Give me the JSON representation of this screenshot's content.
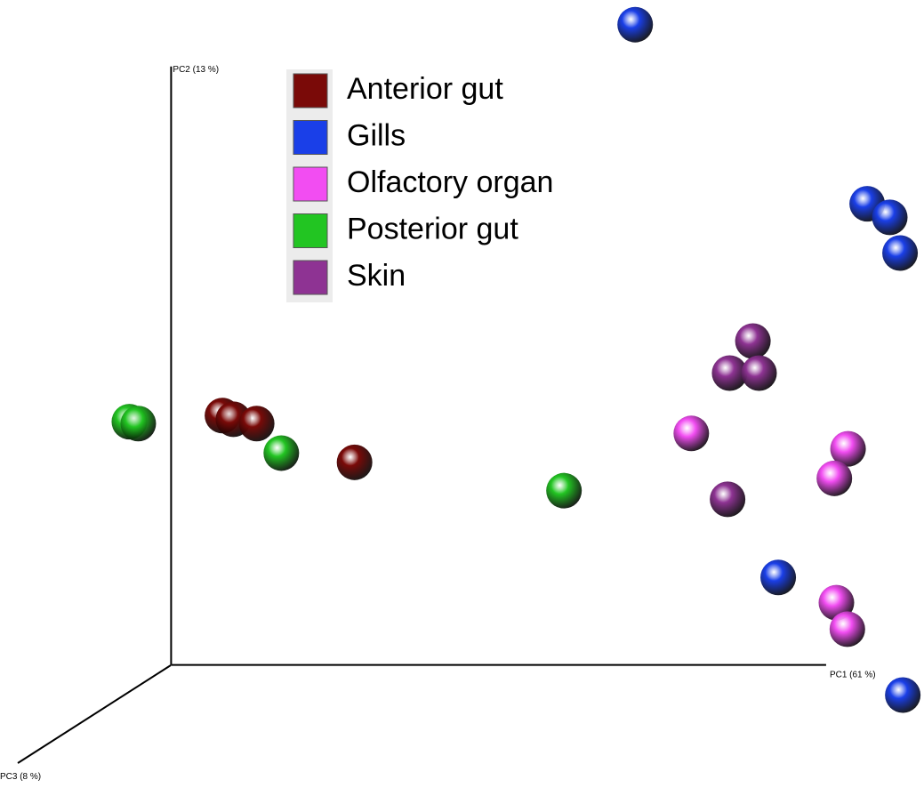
{
  "chart_data": {
    "type": "scatter",
    "x_label": "PC1 (61 %)",
    "y_label": "PC2 (13 %)",
    "z_label": "PC3 (8 %)",
    "xlim": [
      -25,
      110
    ],
    "ylim": [
      -20,
      108
    ],
    "legend": "top",
    "series": [
      {
        "name": "Anterior gut",
        "color": "#7a0a08",
        "x": [
          7.5,
          9.1,
          12.5,
          26.8
        ],
        "values": [
          40.5,
          39.9,
          39.2,
          32.9
        ]
      },
      {
        "name": "Gills",
        "color": "#1a3fe8",
        "x": [
          67.8,
          101.7,
          105.0,
          106.5,
          88.7,
          106.9
        ],
        "values": [
          104.0,
          74.9,
          72.7,
          66.9,
          14.2,
          -4.9
        ]
      },
      {
        "name": "Olfactory organ",
        "color": "#f24df2",
        "x": [
          76.0,
          98.9,
          96.9,
          97.2,
          98.8
        ],
        "values": [
          37.6,
          35.1,
          30.3,
          10.1,
          5.8
        ]
      },
      {
        "name": "Posterior gut",
        "color": "#22c522",
        "x": [
          -6.1,
          -4.8,
          16.1,
          57.4
        ],
        "values": [
          39.5,
          39.2,
          34.4,
          28.3
        ]
      },
      {
        "name": "Skin",
        "color": "#8e3393",
        "x": [
          85.0,
          81.6,
          85.9,
          81.3
        ],
        "values": [
          52.6,
          47.4,
          47.4,
          26.9
        ]
      }
    ]
  }
}
